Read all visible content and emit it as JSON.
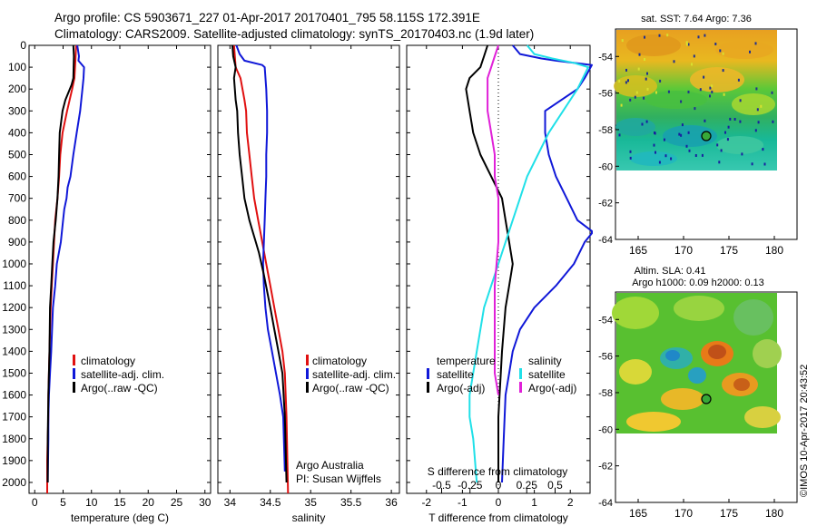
{
  "header": {
    "line1": "Argo profile: CS 5903671_227 01-Apr-2017 20170401_795 58.115S 172.391E",
    "line2": "Climatology: CARS2009. Satellite-adjusted climatology: synTS_20170403.nc (1.9d later)"
  },
  "credit": "©IMOS 10-Apr-2017 20:43:52",
  "colors": {
    "climatology": "#e01010",
    "satellite": "#1018d8",
    "argo": "#000000",
    "satellite_S": "#20e0e8",
    "argo_S": "#e020d8"
  },
  "chart_data": [
    {
      "id": "temperature",
      "type": "line",
      "xlabel": "temperature (deg C)",
      "ylabel": "",
      "xlim": [
        -1,
        31
      ],
      "ylim": [
        2050,
        0
      ],
      "xticks": [
        0,
        5,
        10,
        15,
        20,
        25,
        30
      ],
      "yticks": [
        0,
        100,
        200,
        300,
        400,
        500,
        600,
        700,
        800,
        900,
        1000,
        1100,
        1200,
        1300,
        1400,
        1500,
        1600,
        1700,
        1800,
        1900,
        2000
      ],
      "legend": [
        "climatology",
        "satellite-adj. clim.",
        "Argo(..raw -QC)"
      ],
      "series": [
        {
          "name": "climatology",
          "color": "#e01010",
          "x": [
            7.3,
            7.2,
            7.0,
            6.6,
            5.7,
            4.9,
            4.5,
            4.3,
            4.0,
            3.6,
            3.2,
            3.0,
            2.8,
            2.6,
            2.5,
            2.4,
            2.4,
            2.3,
            2.2,
            2.2
          ],
          "y": [
            0,
            50,
            150,
            200,
            300,
            400,
            500,
            600,
            700,
            800,
            1000,
            1100,
            1200,
            1400,
            1500,
            1600,
            1700,
            1800,
            1900,
            2050
          ]
        },
        {
          "name": "satellite-adj. clim.",
          "color": "#1018d8",
          "x": [
            7.5,
            7.8,
            7.7,
            8.7,
            8.6,
            8.4,
            8.0,
            7.4,
            6.8,
            6.3,
            5.8,
            5.6,
            5.2,
            5.0,
            4.6,
            3.9,
            3.6,
            3.2,
            2.9,
            2.7,
            2.5,
            2.4,
            2.4,
            2.3
          ],
          "y": [
            0,
            50,
            70,
            100,
            150,
            200,
            300,
            400,
            500,
            600,
            650,
            700,
            750,
            800,
            900,
            1000,
            1100,
            1200,
            1400,
            1500,
            1600,
            1700,
            1800,
            2000
          ]
        },
        {
          "name": "Argo(..raw -QC)",
          "color": "#000000",
          "x": [
            6.8,
            6.9,
            6.8,
            6.5,
            5.4,
            4.9,
            4.4,
            4.3,
            4.2,
            4.0,
            3.7,
            3.3,
            3.1,
            2.9,
            2.7,
            2.6,
            2.5,
            2.4,
            2.3,
            2.3
          ],
          "y": [
            0,
            50,
            150,
            180,
            250,
            300,
            400,
            500,
            600,
            700,
            800,
            900,
            1000,
            1100,
            1200,
            1400,
            1500,
            1600,
            1800,
            2000
          ]
        }
      ]
    },
    {
      "id": "salinity",
      "type": "line",
      "xlabel": "salinity",
      "ylabel": "",
      "xlim": [
        33.85,
        36.1
      ],
      "ylim": [
        2050,
        0
      ],
      "xticks": [
        34,
        34.5,
        35,
        35.5,
        36
      ],
      "legend": [
        "climatology",
        "satellite-adj. clim.",
        "Argo(..raw -QC)"
      ],
      "annotation_lines": [
        "Argo Australia",
        "PI: Susan Wijffels"
      ],
      "series": [
        {
          "name": "climatology",
          "color": "#e01010",
          "x": [
            34.05,
            34.06,
            34.07,
            34.13,
            34.18,
            34.2,
            34.21,
            34.24,
            34.27,
            34.3,
            34.35,
            34.4,
            34.45,
            34.5,
            34.55,
            34.6,
            34.65,
            34.68,
            34.7,
            34.72
          ],
          "y": [
            0,
            50,
            100,
            150,
            250,
            300,
            400,
            500,
            600,
            700,
            800,
            900,
            1000,
            1100,
            1200,
            1300,
            1400,
            1500,
            1700,
            2050
          ]
        },
        {
          "name": "satellite-adj. clim.",
          "color": "#1018d8",
          "x": [
            34.08,
            34.12,
            34.18,
            34.4,
            34.43,
            34.45,
            34.46,
            34.46,
            34.45,
            34.45,
            34.44,
            34.43,
            34.42,
            34.41,
            34.42,
            34.44,
            34.47,
            34.52,
            34.57,
            34.62,
            34.66,
            34.68
          ],
          "y": [
            0,
            40,
            70,
            90,
            100,
            200,
            300,
            400,
            500,
            600,
            700,
            800,
            900,
            1000,
            1100,
            1200,
            1300,
            1400,
            1500,
            1600,
            1700,
            1950
          ]
        },
        {
          "name": "Argo(..raw -QC)",
          "color": "#000000",
          "x": [
            34.03,
            34.04,
            34.07,
            34.05,
            34.07,
            34.09,
            34.1,
            34.12,
            34.15,
            34.18,
            34.21,
            34.24,
            34.28,
            34.32,
            34.36,
            34.42,
            34.5,
            34.55,
            34.6,
            34.65,
            34.68,
            34.7
          ],
          "y": [
            0,
            50,
            100,
            150,
            250,
            300,
            400,
            500,
            600,
            700,
            750,
            800,
            850,
            900,
            950,
            1050,
            1200,
            1300,
            1400,
            1500,
            1700,
            2000
          ]
        }
      ]
    },
    {
      "id": "differences",
      "type": "line",
      "xlabel": "T difference from climatology",
      "xlabel_top": "S difference from climatology",
      "xlim": [
        -2.55,
        2.55
      ],
      "ylim": [
        2050,
        0
      ],
      "xticks": [
        -2,
        -1,
        0,
        1,
        2
      ],
      "xticks_S": [
        -0.5,
        -0.25,
        0,
        0.25,
        0.5
      ],
      "legend_headers": [
        "temperature",
        "salinity"
      ],
      "legend": [
        "satellite",
        "Argo(-adj)",
        "satellite",
        "Argo(-adj)"
      ],
      "series": [
        {
          "name": "satellite",
          "color": "#1018d8",
          "x": [
            0.4,
            0.6,
            1.2,
            1.6,
            2.6,
            2.4,
            2.2,
            1.3,
            1.3,
            1.4,
            1.6,
            1.9,
            2.2,
            2.6,
            2.6,
            2.4,
            2.1,
            1.6,
            1.0,
            0.6,
            0.4,
            0.3,
            0.2,
            0.15,
            0.1
          ],
          "y": [
            0,
            40,
            60,
            70,
            90,
            150,
            200,
            300,
            400,
            500,
            600,
            700,
            800,
            850,
            860,
            900,
            1000,
            1100,
            1200,
            1300,
            1400,
            1500,
            1600,
            1800,
            2000
          ]
        },
        {
          "name": "Argo(-adj)",
          "color": "#000000",
          "x": [
            -0.3,
            -0.4,
            -0.5,
            -0.8,
            -0.9,
            -0.8,
            -0.7,
            -0.5,
            -0.2,
            0.1,
            0.2,
            0.3,
            0.4,
            0.3,
            0.2,
            0.1,
            0.0,
            0.0
          ],
          "y": [
            0,
            50,
            100,
            150,
            200,
            300,
            400,
            500,
            600,
            700,
            800,
            900,
            1000,
            1100,
            1200,
            1400,
            1700,
            2000
          ]
        },
        {
          "name": "satellite ",
          "color": "#20e0e8",
          "x": [
            0.8,
            1.0,
            1.5,
            2.1,
            2.5,
            2.2,
            1.8,
            1.4,
            1.1,
            0.8,
            0.6,
            0.4,
            0.2,
            0.0,
            -0.2,
            -0.4,
            -0.6,
            -0.8,
            -0.8,
            -0.7,
            -0.6
          ],
          "y": [
            0,
            40,
            60,
            80,
            100,
            200,
            300,
            400,
            500,
            600,
            700,
            800,
            900,
            1000,
            1100,
            1200,
            1400,
            1600,
            1700,
            1800,
            2000
          ]
        },
        {
          "name": "Argo(-adj) ",
          "color": "#e020d8",
          "x": [
            0.0,
            -0.1,
            -0.2,
            -0.3,
            -0.3,
            -0.3,
            -0.2,
            -0.1,
            -0.1,
            0.0,
            0.0,
            -0.1,
            -0.1,
            -0.1,
            0.0
          ],
          "y": [
            0,
            50,
            100,
            150,
            200,
            300,
            400,
            500,
            600,
            700,
            900,
            1100,
            1300,
            1500,
            1600
          ]
        }
      ]
    },
    {
      "id": "sst_map",
      "type": "heatmap",
      "title": "sat. SST: 7.64 Argo: 7.36",
      "xlim": [
        162.5,
        182.5
      ],
      "ylim": [
        -64,
        -52.5
      ],
      "xticks": [
        165,
        170,
        175,
        180
      ],
      "yticks": [
        -54,
        -56,
        -58,
        -60,
        -62,
        -64
      ],
      "marker": {
        "lon": 172.39,
        "lat": -58.12
      }
    },
    {
      "id": "sla_map",
      "type": "heatmap",
      "title_lines": [
        "Altim. SLA: 0.41",
        "Argo h1000: 0.09 h2000: 0.13"
      ],
      "xlim": [
        162.5,
        182.5
      ],
      "ylim": [
        -64,
        -52.5
      ],
      "xticks": [
        165,
        170,
        175,
        180
      ],
      "yticks": [
        -54,
        -56,
        -58,
        -60,
        -62,
        -64
      ],
      "marker": {
        "lon": 172.39,
        "lat": -58.12
      }
    }
  ]
}
